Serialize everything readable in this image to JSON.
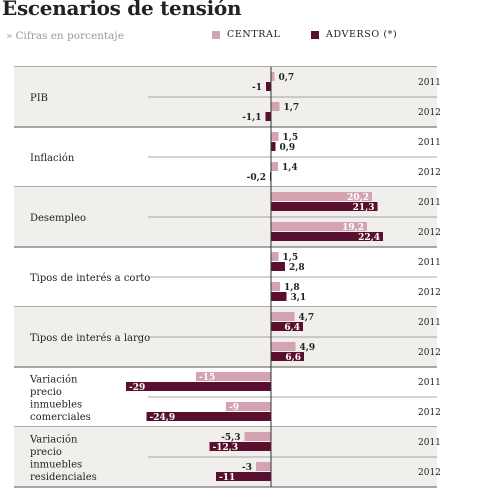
{
  "header": {
    "title": "Escenarios de tensión",
    "subtitle_arrows": "»",
    "subtitle": "Cifras en porcentaje"
  },
  "legend": [
    {
      "label": "CENTRAL",
      "color": "#d4a3b3"
    },
    {
      "label": "ADVERSO (*)",
      "color": "#5a0f2e"
    }
  ],
  "chart_data": {
    "type": "bar",
    "orientation": "horizontal",
    "title": "Escenarios de tensión",
    "subtitle": "Cifras en porcentaje",
    "xlim": [
      -30,
      25
    ],
    "series_names": [
      "CENTRAL",
      "ADVERSO (*)"
    ],
    "colors": {
      "CENTRAL": "#d4a3b3",
      "ADVERSO (*)": "#5a0f2e"
    },
    "groups": [
      {
        "category": "PIB",
        "label_lines": [
          "PIB"
        ],
        "shaded": true,
        "years": [
          {
            "year": "2011",
            "central": 0.7,
            "adverso": -1,
            "central_label": "0,7",
            "adverso_label": "-1"
          },
          {
            "year": "2012",
            "central": 1.7,
            "adverso": -1.1,
            "central_label": "1,7",
            "adverso_label": "-1,1"
          }
        ]
      },
      {
        "category": "Inflación",
        "label_lines": [
          "Inflación"
        ],
        "shaded": false,
        "years": [
          {
            "year": "2011",
            "central": 1.5,
            "adverso": 0.9,
            "central_label": "1,5",
            "adverso_label": "0,9"
          },
          {
            "year": "2012",
            "central": 1.4,
            "adverso": -0.2,
            "central_label": "1,4",
            "adverso_label": "-0,2"
          }
        ]
      },
      {
        "category": "Desempleo",
        "label_lines": [
          "Desempleo"
        ],
        "shaded": true,
        "years": [
          {
            "year": "2011",
            "central": 20.2,
            "adverso": 21.3,
            "central_label": "20,2",
            "adverso_label": "21,3"
          },
          {
            "year": "2012",
            "central": 19.2,
            "adverso": 22.4,
            "central_label": "19,2",
            "adverso_label": "22,4"
          }
        ]
      },
      {
        "category": "Tipos de interés a corto",
        "label_lines": [
          "Tipos de interés a corto"
        ],
        "shaded": false,
        "years": [
          {
            "year": "2011",
            "central": 1.5,
            "adverso": 2.8,
            "central_label": "1,5",
            "adverso_label": "2,8"
          },
          {
            "year": "2012",
            "central": 1.8,
            "adverso": 3.1,
            "central_label": "1,8",
            "adverso_label": "3,1"
          }
        ]
      },
      {
        "category": "Tipos de interés a largo",
        "label_lines": [
          "Tipos de interés a largo"
        ],
        "shaded": true,
        "years": [
          {
            "year": "2011",
            "central": 4.7,
            "adverso": 6.4,
            "central_label": "4,7",
            "adverso_label": "6,4"
          },
          {
            "year": "2012",
            "central": 4.9,
            "adverso": 6.6,
            "central_label": "4,9",
            "adverso_label": "6,6"
          }
        ]
      },
      {
        "category": "Variación precio inmuebles comerciales",
        "label_lines": [
          "Variación",
          "precio",
          "inmuebles",
          "comerciales"
        ],
        "shaded": false,
        "years": [
          {
            "year": "2011",
            "central": -15,
            "adverso": -29,
            "central_label": "-15",
            "adverso_label": "-29"
          },
          {
            "year": "2012",
            "central": -9,
            "adverso": -24.9,
            "central_label": "-9",
            "adverso_label": "-24,9"
          }
        ]
      },
      {
        "category": "Variación precio inmuebles residenciales",
        "label_lines": [
          "Variación",
          "precio",
          "inmuebles",
          "residenciales"
        ],
        "shaded": true,
        "years": [
          {
            "year": "2011",
            "central": -5.3,
            "adverso": -12.3,
            "central_label": "-5,3",
            "adverso_label": "-12,3"
          },
          {
            "year": "2012",
            "central": -3,
            "adverso": -11,
            "central_label": "-3",
            "adverso_label": "-11"
          }
        ]
      }
    ]
  }
}
